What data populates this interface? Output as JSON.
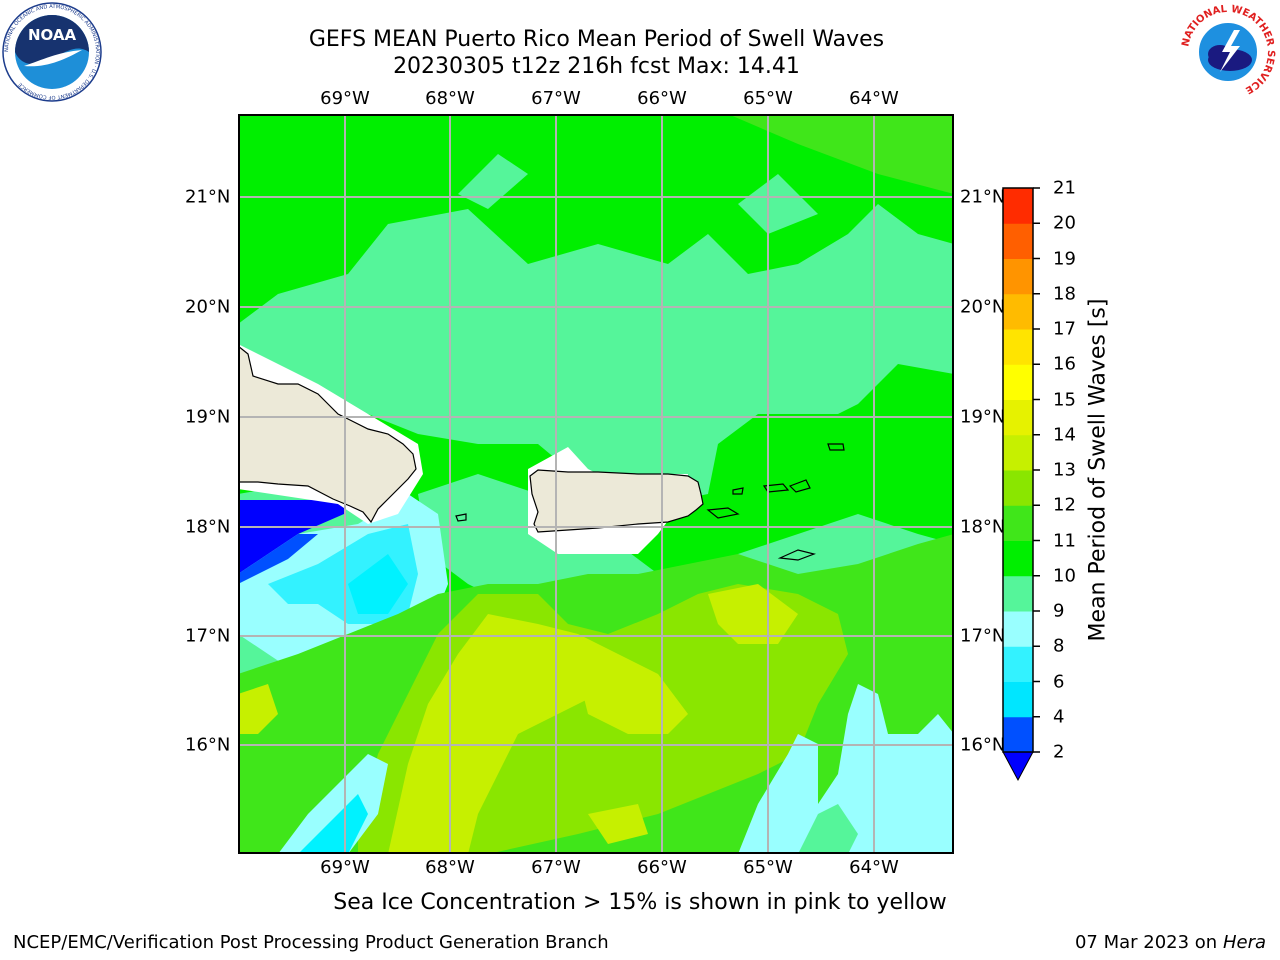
{
  "header": {
    "title_line1": "GEFS MEAN Puerto Rico Mean Period of Swell Waves",
    "title_line2": "20230305 t12z 216h fcst   Max: 14.41"
  },
  "map": {
    "lon_labels": [
      "69°W",
      "68°W",
      "67°W",
      "66°W",
      "65°W",
      "64°W"
    ],
    "lat_labels": [
      "21°N",
      "20°N",
      "19°N",
      "18°N",
      "17°N",
      "16°N"
    ],
    "land_color": "#ece9d8",
    "grid_color": "#b4b4b4",
    "landmasses": [
      "Hispaniola",
      "Puerto Rico",
      "Virgin Islands",
      "St. Croix"
    ]
  },
  "colorbar": {
    "label": "Mean Period of Swell Waves [s]",
    "ticks": [
      "2",
      "4",
      "6",
      "8",
      "9",
      "10",
      "11",
      "12",
      "13",
      "14",
      "15",
      "16",
      "17",
      "18",
      "19",
      "20",
      "21"
    ],
    "colors": [
      "#0050ff",
      "#00e6ff",
      "#33f2ff",
      "#99ffff",
      "#55f59a",
      "#00ef00",
      "#40e61a",
      "#8ae600",
      "#c6f000",
      "#e6f200",
      "#ffff00",
      "#ffe400",
      "#ffbb00",
      "#ff9400",
      "#ff5f00",
      "#ff2c00"
    ],
    "extend_color": "#0000ff"
  },
  "caption": "Sea Ice Concentration > 15% is shown in pink to yellow",
  "footer": {
    "left": "NCEP/EMC/Verification Post Processing Product Generation Branch",
    "right_date": "07 Mar 2023 on",
    "right_host": "Hera"
  },
  "logos": {
    "noaa_text": "NOAA",
    "noaa_ring_text": "NATIONAL OCEANIC AND ATMOSPHERIC ADMINISTRATION · U.S. DEPARTMENT OF COMMERCE",
    "nws_ring_text": "NATIONAL WEATHER SERVICE"
  }
}
